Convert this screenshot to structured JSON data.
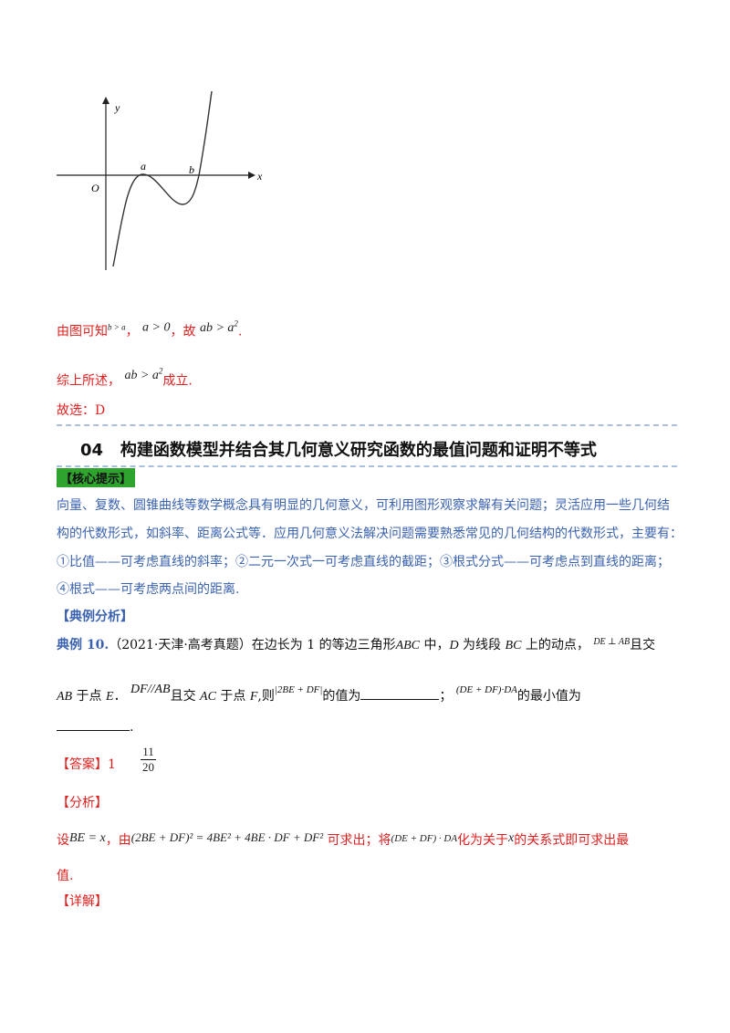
{
  "graph": {
    "y_label": "y",
    "x_label": "x",
    "origin_label": "O",
    "point_a": "a",
    "point_b": "b"
  },
  "line1": {
    "prefix": "由图可知",
    "cond1": "b > a",
    "sep1": "，",
    "cond2": "a > 0",
    "sep2": "，故",
    "result": "ab > a",
    "result_exp": "2",
    "end": "."
  },
  "line2": {
    "prefix": "综上所述，",
    "expr": "ab > a",
    "expr_exp": "2",
    "suffix": "成立."
  },
  "line3": {
    "text": "故选：D"
  },
  "section": {
    "number": "04",
    "title": "构建函数模型并结合其几何意义研究函数的最值问题和证明不等式"
  },
  "hint_tag": "【核心提示】",
  "hint_lines": [
    "向量、复数、圆锥曲线等数学概念具有明显的几何意义，可利用图形观察求解有关问题；灵活应用一些几何结",
    "构的代数形式，如斜率、距离公式等．应用几何意义法解决问题需要熟悉常见的几何结构的代数形式，主要有：",
    "①比值——可考虑直线的斜率；②二元一次式一可考虑直线的截距；③根式分式——可考虑点到直线的距离；",
    "④根式——可考虑两点间的距离."
  ],
  "example_tag": "【典例分析】",
  "example": {
    "label": "典例 10.",
    "source": "（2021·天津·高考真题）在边长为 1 的等边三角形",
    "abc": "ABC",
    "mid1": " 中，",
    "d": "D",
    "mid2": " 为线段 ",
    "bc": "BC",
    "mid3": " 上的动点，",
    "perp": "DE ⊥ AB",
    "end1": "且交",
    "line2_ab": "AB",
    "line2_a": " 于点 ",
    "e": "E",
    "line2_b": "．",
    "parallel": "DF//AB",
    "line2_c": "且交 ",
    "ac": "AC",
    "line2_d": " 于点 ",
    "f": "F",
    "line2_e": ",则",
    "abs_expr": "|2BE + DF|",
    "line2_f": "的值为",
    "line2_g": "；",
    "dot_expr": "(DE + DF)·DA",
    "line2_h": "的最小值为",
    "line3_end": "."
  },
  "answer": {
    "tag": "【答案】",
    "value1": "1",
    "frac_num": "11",
    "frac_den": "20"
  },
  "analysis": {
    "tag": "【分析】",
    "prefix": "设",
    "let": "BE = x",
    "mid1": "，由",
    "formula": "(2BE + DF)² = 4BE² + 4BE · DF + DF²",
    "mid2": "可求出；将",
    "expr2": "(DE + DF) · DA",
    "mid3": "化为关于",
    "var": "x",
    "mid4": "的关系式即可求出最",
    "end": "值."
  },
  "detail_tag": "【详解】"
}
